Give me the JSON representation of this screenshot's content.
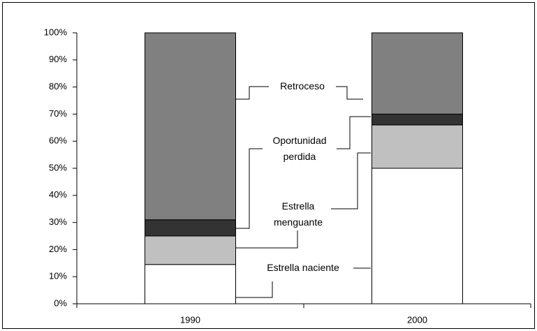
{
  "chart_data": {
    "type": "stacked_bar",
    "categories": [
      "1990",
      "2000"
    ],
    "series": [
      {
        "name": "Estrella naciente",
        "color": "#ffffff",
        "values": [
          14.5,
          50
        ]
      },
      {
        "name": "Estrella menguante",
        "color": "#c0c0c0",
        "values": [
          10.5,
          16
        ]
      },
      {
        "name": "Oportunidad perdida",
        "color": "#333333",
        "values": [
          6,
          4
        ]
      },
      {
        "name": "Retroceso",
        "color": "#808080",
        "values": [
          69,
          30
        ]
      }
    ],
    "ylim": [
      0,
      100
    ],
    "yticks": [
      {
        "value": 0,
        "label": "0%"
      },
      {
        "value": 10,
        "label": "10%"
      },
      {
        "value": 20,
        "label": "20%"
      },
      {
        "value": 30,
        "label": "30%"
      },
      {
        "value": 40,
        "label": "40%"
      },
      {
        "value": 50,
        "label": "50%"
      },
      {
        "value": 60,
        "label": "60%"
      },
      {
        "value": 70,
        "label": "70%"
      },
      {
        "value": 80,
        "label": "80%"
      },
      {
        "value": 90,
        "label": "90%"
      },
      {
        "value": 100,
        "label": "100%"
      }
    ]
  }
}
